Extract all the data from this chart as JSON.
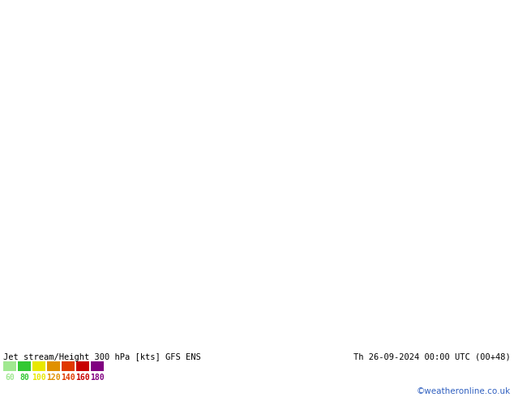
{
  "title_left": "Jet stream/Height 300 hPa [kts] GFS ENS",
  "title_right": "Th 26-09-2024 00:00 UTC (00+48)",
  "watermark": "©weatheronline.co.uk",
  "legend_values": [
    "60",
    "80",
    "100",
    "120",
    "140",
    "160",
    "180"
  ],
  "legend_colors": [
    "#a0e890",
    "#32c832",
    "#e8e800",
    "#e09000",
    "#e03800",
    "#c80000",
    "#800080"
  ],
  "bg_color": "#c8e6a0",
  "land_color": "#c8e6a0",
  "sea_color": "#c8c8c8",
  "contour_color": "#000000",
  "border_color": "#a09898",
  "fig_width": 6.34,
  "fig_height": 4.9,
  "dpi": 100,
  "bottom_bar_color": "#ffffff",
  "extent": [
    -10,
    110,
    5,
    65
  ],
  "jet_light_color": "#b0f0b0",
  "jet_medium_color": "#50d050",
  "jet_dark_color": "#00a000"
}
